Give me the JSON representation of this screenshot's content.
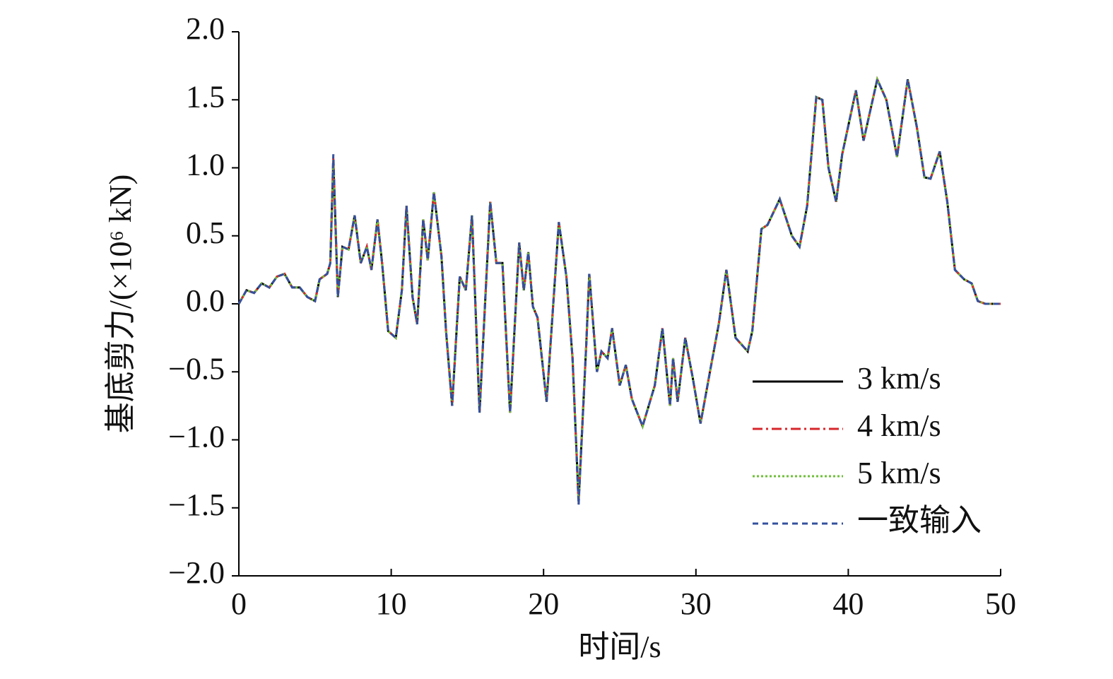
{
  "chart_data": {
    "type": "line",
    "xlabel": "时间/s",
    "ylabel": "基底剪力/(×10⁶ kN)",
    "x": [
      0,
      0.5,
      1,
      1.5,
      2,
      2.5,
      3,
      3.5,
      4,
      4.5,
      5,
      5.3,
      5.8,
      6.0,
      6.2,
      6.5,
      6.8,
      7.2,
      7.6,
      8,
      8.4,
      8.7,
      9.1,
      9.4,
      9.8,
      10.3,
      10.7,
      11,
      11.4,
      11.7,
      12.1,
      12.4,
      12.8,
      13.3,
      13.6,
      14,
      14.5,
      14.9,
      15.3,
      15.8,
      16.5,
      16.9,
      17.3,
      17.8,
      18.4,
      18.7,
      19.0,
      19.3,
      19.6,
      20.2,
      21.0,
      21.5,
      21.9,
      22.3,
      22.8,
      23.0,
      23.5,
      23.8,
      24.2,
      24.5,
      25.0,
      25.4,
      25.8,
      26.5,
      27.3,
      27.8,
      28.3,
      28.5,
      28.8,
      29.3,
      29.8,
      30.3,
      31,
      31.5,
      32,
      32.6,
      33,
      33.4,
      33.7,
      34.3,
      34.7,
      35.5,
      36,
      36.3,
      36.8,
      37.3,
      37.9,
      38.3,
      38.7,
      39.2,
      39.6,
      40.5,
      41,
      41.9,
      42.5,
      43.2,
      43.9,
      44.5,
      45,
      45.4,
      46,
      46.5,
      47,
      47.6,
      48.1,
      48.5,
      49,
      50
    ],
    "series": [
      {
        "name": "3 km/s",
        "color": "#000000",
        "linestyle": "solid",
        "values": [
          0,
          0.1,
          0.08,
          0.15,
          0.12,
          0.2,
          0.22,
          0.12,
          0.12,
          0.05,
          0.02,
          0.18,
          0.22,
          0.3,
          1.05,
          0.05,
          0.42,
          0.4,
          0.65,
          0.3,
          0.42,
          0.25,
          0.62,
          0.3,
          -0.2,
          -0.25,
          0.1,
          0.72,
          0.05,
          -0.15,
          0.62,
          0.32,
          0.82,
          0.35,
          -0.2,
          -0.75,
          0.2,
          0.1,
          0.65,
          -0.8,
          0.75,
          0.3,
          0.3,
          -0.8,
          0.45,
          0.1,
          0.38,
          -0.02,
          -0.1,
          -0.72,
          0.6,
          0.2,
          -0.4,
          -1.45,
          -0.3,
          0.22,
          -0.5,
          -0.35,
          -0.4,
          -0.18,
          -0.6,
          -0.45,
          -0.7,
          -0.9,
          -0.6,
          -0.18,
          -0.75,
          -0.4,
          -0.72,
          -0.25,
          -0.55,
          -0.88,
          -0.45,
          -0.15,
          0.25,
          -0.25,
          -0.3,
          -0.35,
          -0.2,
          0.55,
          0.58,
          0.77,
          0.6,
          0.5,
          0.42,
          0.72,
          1.52,
          1.5,
          1.0,
          0.75,
          1.1,
          1.57,
          1.2,
          1.65,
          1.5,
          1.08,
          1.65,
          1.3,
          0.93,
          0.92,
          1.12,
          0.75,
          0.25,
          0.18,
          0.15,
          0.02,
          0,
          0
        ]
      },
      {
        "name": "4 km/s",
        "color": "#d7262b",
        "linestyle": "dashdot",
        "values": [
          0,
          0.1,
          0.08,
          0.15,
          0.12,
          0.2,
          0.22,
          0.12,
          0.12,
          0.05,
          0.02,
          0.18,
          0.22,
          0.3,
          1.08,
          0.05,
          0.42,
          0.4,
          0.65,
          0.3,
          0.42,
          0.25,
          0.62,
          0.3,
          -0.2,
          -0.25,
          0.1,
          0.72,
          0.05,
          -0.15,
          0.62,
          0.32,
          0.82,
          0.35,
          -0.2,
          -0.75,
          0.2,
          0.1,
          0.65,
          -0.8,
          0.75,
          0.3,
          0.3,
          -0.8,
          0.45,
          0.1,
          0.38,
          -0.02,
          -0.1,
          -0.72,
          0.6,
          0.2,
          -0.4,
          -1.47,
          -0.3,
          0.22,
          -0.5,
          -0.35,
          -0.4,
          -0.18,
          -0.6,
          -0.45,
          -0.7,
          -0.9,
          -0.6,
          -0.18,
          -0.75,
          -0.4,
          -0.72,
          -0.25,
          -0.55,
          -0.88,
          -0.45,
          -0.15,
          0.25,
          -0.25,
          -0.3,
          -0.35,
          -0.2,
          0.55,
          0.58,
          0.77,
          0.6,
          0.5,
          0.42,
          0.72,
          1.52,
          1.5,
          1.0,
          0.75,
          1.1,
          1.57,
          1.2,
          1.65,
          1.5,
          1.08,
          1.65,
          1.3,
          0.93,
          0.92,
          1.12,
          0.75,
          0.25,
          0.18,
          0.15,
          0.02,
          0,
          0
        ]
      },
      {
        "name": "5 km/s",
        "color": "#6fbf3a",
        "linestyle": "dotted",
        "values": [
          0,
          0.1,
          0.08,
          0.15,
          0.12,
          0.2,
          0.22,
          0.12,
          0.12,
          0.05,
          0.02,
          0.18,
          0.22,
          0.3,
          1.06,
          0.05,
          0.42,
          0.4,
          0.65,
          0.3,
          0.42,
          0.25,
          0.62,
          0.3,
          -0.2,
          -0.25,
          0.1,
          0.72,
          0.05,
          -0.15,
          0.62,
          0.32,
          0.82,
          0.35,
          -0.2,
          -0.75,
          0.2,
          0.1,
          0.65,
          -0.8,
          0.75,
          0.3,
          0.3,
          -0.8,
          0.45,
          0.1,
          0.38,
          -0.02,
          -0.1,
          -0.72,
          0.6,
          0.2,
          -0.4,
          -1.46,
          -0.3,
          0.22,
          -0.5,
          -0.35,
          -0.4,
          -0.18,
          -0.6,
          -0.45,
          -0.7,
          -0.9,
          -0.6,
          -0.18,
          -0.75,
          -0.4,
          -0.72,
          -0.25,
          -0.55,
          -0.88,
          -0.45,
          -0.15,
          0.25,
          -0.25,
          -0.3,
          -0.35,
          -0.2,
          0.55,
          0.58,
          0.77,
          0.6,
          0.5,
          0.42,
          0.72,
          1.52,
          1.5,
          1.0,
          0.75,
          1.1,
          1.57,
          1.2,
          1.65,
          1.5,
          1.08,
          1.65,
          1.3,
          0.93,
          0.92,
          1.12,
          0.75,
          0.25,
          0.18,
          0.15,
          0.02,
          0,
          0
        ]
      },
      {
        "name": "一致输入",
        "color": "#34509e",
        "linestyle": "dashed",
        "values": [
          0,
          0.1,
          0.08,
          0.15,
          0.12,
          0.2,
          0.22,
          0.12,
          0.12,
          0.05,
          0.02,
          0.18,
          0.22,
          0.3,
          1.1,
          0.05,
          0.42,
          0.4,
          0.65,
          0.3,
          0.42,
          0.25,
          0.62,
          0.3,
          -0.2,
          -0.25,
          0.1,
          0.72,
          0.05,
          -0.15,
          0.62,
          0.32,
          0.82,
          0.35,
          -0.2,
          -0.75,
          0.2,
          0.1,
          0.65,
          -0.8,
          0.75,
          0.3,
          0.3,
          -0.8,
          0.45,
          0.1,
          0.38,
          -0.02,
          -0.1,
          -0.72,
          0.6,
          0.2,
          -0.4,
          -1.48,
          -0.3,
          0.22,
          -0.5,
          -0.35,
          -0.4,
          -0.18,
          -0.6,
          -0.45,
          -0.7,
          -0.9,
          -0.6,
          -0.18,
          -0.75,
          -0.4,
          -0.72,
          -0.25,
          -0.55,
          -0.88,
          -0.45,
          -0.15,
          0.25,
          -0.25,
          -0.3,
          -0.35,
          -0.2,
          0.55,
          0.58,
          0.77,
          0.6,
          0.5,
          0.42,
          0.72,
          1.52,
          1.5,
          1.0,
          0.75,
          1.1,
          1.57,
          1.2,
          1.65,
          1.5,
          1.08,
          1.65,
          1.3,
          0.93,
          0.92,
          1.12,
          0.75,
          0.25,
          0.18,
          0.15,
          0.02,
          0,
          0
        ]
      }
    ],
    "xlim": [
      0,
      50
    ],
    "xticks": [
      0,
      10,
      20,
      30,
      40,
      50
    ],
    "ylim": [
      -2,
      2
    ],
    "yticks": [
      {
        "value": -2,
        "label": "−2.0"
      },
      {
        "value": -1.5,
        "label": "−1.5"
      },
      {
        "value": -1,
        "label": "−1.0"
      },
      {
        "value": -0.5,
        "label": "−0.5"
      },
      {
        "value": 0,
        "label": "0.0"
      },
      {
        "value": 0.5,
        "label": "0.5"
      },
      {
        "value": 1,
        "label": "1.0"
      },
      {
        "value": 1.5,
        "label": "1.5"
      },
      {
        "value": 2,
        "label": "2.0"
      }
    ],
    "grid": false,
    "legend": "lower right"
  }
}
